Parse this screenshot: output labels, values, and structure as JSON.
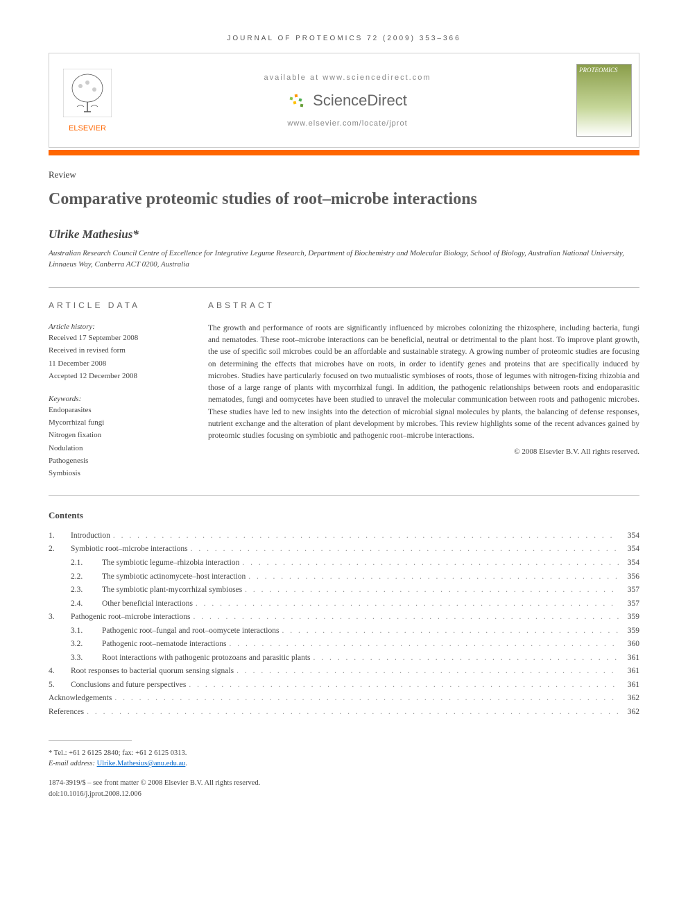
{
  "journal_header": "JOURNAL OF PROTEOMICS 72 (2009) 353–366",
  "header": {
    "available_at": "available at www.sciencedirect.com",
    "sciencedirect": "ScienceDirect",
    "locate": "www.elsevier.com/locate/jprot",
    "elsevier": "ELSEVIER",
    "cover_journal": "PROTEOMICS"
  },
  "article_type": "Review",
  "title": "Comparative proteomic studies of root–microbe interactions",
  "author": "Ulrike Mathesius*",
  "affiliation": "Australian Research Council Centre of Excellence for Integrative Legume Research, Department of Biochemistry and Molecular Biology, School of Biology, Australian National University, Linnaeus Way, Canberra ACT 0200, Australia",
  "article_data_heading": "ARTICLE DATA",
  "abstract_heading": "ABSTRACT",
  "history": {
    "label": "Article history:",
    "received": "Received 17 September 2008",
    "revised1": "Received in revised form",
    "revised2": "11 December 2008",
    "accepted": "Accepted 12 December 2008"
  },
  "keywords": {
    "label": "Keywords:",
    "items": [
      "Endoparasites",
      "Mycorrhizal fungi",
      "Nitrogen fixation",
      "Nodulation",
      "Pathogenesis",
      "Symbiosis"
    ]
  },
  "abstract": "The growth and performance of roots are significantly influenced by microbes colonizing the rhizosphere, including bacteria, fungi and nematodes. These root–microbe interactions can be beneficial, neutral or detrimental to the plant host. To improve plant growth, the use of specific soil microbes could be an affordable and sustainable strategy. A growing number of proteomic studies are focusing on determining the effects that microbes have on roots, in order to identify genes and proteins that are specifically induced by microbes. Studies have particularly focused on two mutualistic symbioses of roots, those of legumes with nitrogen-fixing rhizobia and those of a large range of plants with mycorrhizal fungi. In addition, the pathogenic relationships between roots and endoparasitic nematodes, fungi and oomycetes have been studied to unravel the molecular communication between roots and pathogenic microbes. These studies have led to new insights into the detection of microbial signal molecules by plants, the balancing of defense responses, nutrient exchange and the alteration of plant development by microbes. This review highlights some of the recent advances gained by proteomic studies focusing on symbiotic and pathogenic root–microbe interactions.",
  "copyright": "© 2008 Elsevier B.V. All rights reserved.",
  "contents_heading": "Contents",
  "toc": [
    {
      "num": "1.",
      "title": "Introduction",
      "page": "354",
      "level": 0
    },
    {
      "num": "2.",
      "title": "Symbiotic root–microbe interactions",
      "page": "354",
      "level": 0
    },
    {
      "num": "2.1.",
      "title": "The symbiotic legume–rhizobia interaction",
      "page": "354",
      "level": 1
    },
    {
      "num": "2.2.",
      "title": "The symbiotic actinomycete–host interaction",
      "page": "356",
      "level": 1
    },
    {
      "num": "2.3.",
      "title": "The symbiotic plant-mycorrhizal symbioses",
      "page": "357",
      "level": 1
    },
    {
      "num": "2.4.",
      "title": "Other beneficial interactions",
      "page": "357",
      "level": 1
    },
    {
      "num": "3.",
      "title": "Pathogenic root–microbe interactions",
      "page": "359",
      "level": 0
    },
    {
      "num": "3.1.",
      "title": "Pathogenic root–fungal and root–oomycete interactions",
      "page": "359",
      "level": 1
    },
    {
      "num": "3.2.",
      "title": "Pathogenic root–nematode interactions",
      "page": "360",
      "level": 1
    },
    {
      "num": "3.3.",
      "title": "Root interactions with pathogenic protozoans and parasitic plants",
      "page": "361",
      "level": 1
    },
    {
      "num": "4.",
      "title": "Root responses to bacterial quorum sensing signals",
      "page": "361",
      "level": 0
    },
    {
      "num": "5.",
      "title": "Conclusions and future perspectives",
      "page": "361",
      "level": 0
    },
    {
      "num": "",
      "title": "Acknowledgements",
      "page": "362",
      "level": -1
    },
    {
      "num": "",
      "title": "References",
      "page": "362",
      "level": -1
    }
  ],
  "footnote": {
    "tel": "* Tel.: +61 2 6125 2840; fax: +61 2 6125 0313.",
    "email_label": "E-mail address:",
    "email": "Ulrike.Mathesius@anu.edu.au",
    "email_suffix": "."
  },
  "bottom": {
    "line1": "1874-3919/$ – see front matter © 2008 Elsevier B.V. All rights reserved.",
    "line2": "doi:10.1016/j.jprot.2008.12.006"
  },
  "colors": {
    "orange": "#ff6600",
    "text": "#444444",
    "link": "#0066cc"
  }
}
